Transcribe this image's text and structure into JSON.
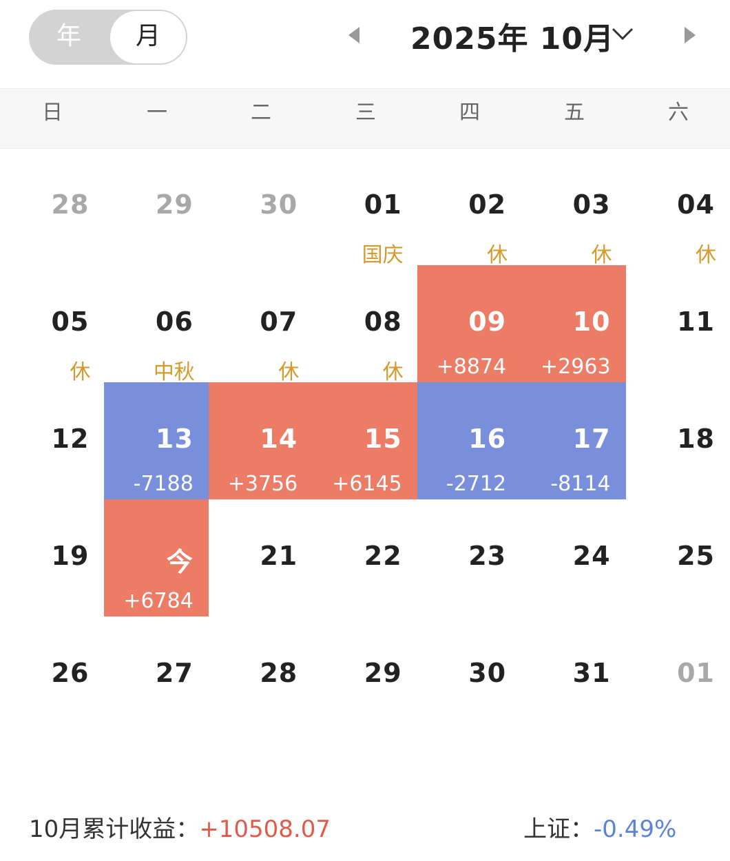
{
  "toggle": {
    "year_label": "年",
    "month_label": "月",
    "selected": "月"
  },
  "header": {
    "title": "2025年 10月"
  },
  "weekdays": [
    "日",
    "一",
    "二",
    "三",
    "四",
    "五",
    "六"
  ],
  "colors": {
    "profit": "#ec7c66",
    "loss": "#7a8fdc",
    "holiday": "#d49a2e",
    "muted": "#a8a8a8"
  },
  "weeks": [
    [
      {
        "day": "28",
        "other": true
      },
      {
        "day": "29",
        "other": true
      },
      {
        "day": "30",
        "other": true
      },
      {
        "day": "01",
        "label": "国庆",
        "type": "holiday"
      },
      {
        "day": "02",
        "label": "休",
        "type": "holiday"
      },
      {
        "day": "03",
        "label": "休",
        "type": "holiday"
      },
      {
        "day": "04",
        "label": "休",
        "type": "holiday"
      }
    ],
    [
      {
        "day": "05",
        "label": "休",
        "type": "holiday"
      },
      {
        "day": "06",
        "label": "中秋",
        "type": "holiday"
      },
      {
        "day": "07",
        "label": "休",
        "type": "holiday"
      },
      {
        "day": "08",
        "label": "休",
        "type": "holiday"
      },
      {
        "day": "09",
        "label": "+8874",
        "type": "up"
      },
      {
        "day": "10",
        "label": "+2963",
        "type": "up"
      },
      {
        "day": "11"
      }
    ],
    [
      {
        "day": "12"
      },
      {
        "day": "13",
        "label": "-7188",
        "type": "down"
      },
      {
        "day": "14",
        "label": "+3756",
        "type": "up"
      },
      {
        "day": "15",
        "label": "+6145",
        "type": "up"
      },
      {
        "day": "16",
        "label": "-2712",
        "type": "down"
      },
      {
        "day": "17",
        "label": "-8114",
        "type": "down"
      },
      {
        "day": "18"
      }
    ],
    [
      {
        "day": "19"
      },
      {
        "day": "今",
        "label": "+6784",
        "type": "up",
        "today": true
      },
      {
        "day": "21"
      },
      {
        "day": "22"
      },
      {
        "day": "23"
      },
      {
        "day": "24"
      },
      {
        "day": "25"
      }
    ],
    [
      {
        "day": "26"
      },
      {
        "day": "27"
      },
      {
        "day": "28"
      },
      {
        "day": "29"
      },
      {
        "day": "30"
      },
      {
        "day": "31"
      },
      {
        "day": "01",
        "other": true
      }
    ]
  ],
  "footer": {
    "cumulative_label": "10月累计收益：",
    "cumulative_value": "+10508.07",
    "index_label": "上证：",
    "index_value": "-0.49%"
  }
}
